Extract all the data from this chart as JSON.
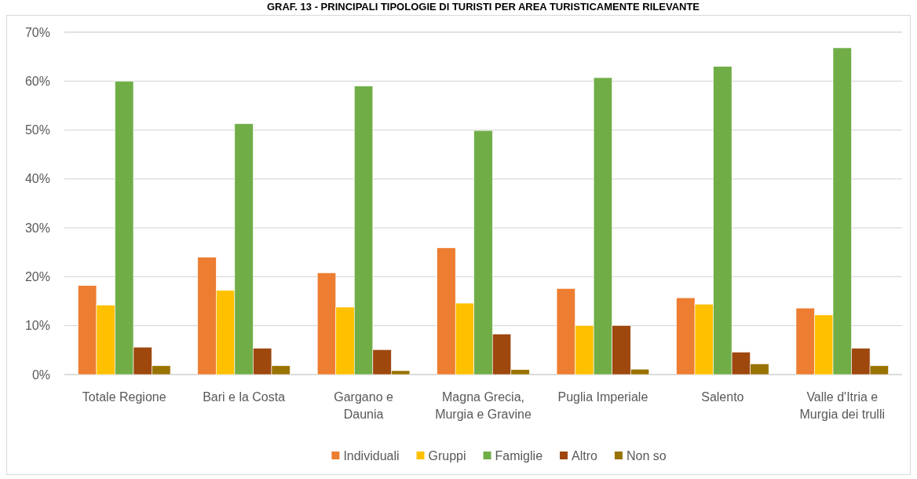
{
  "chart_data": {
    "type": "bar",
    "title": "GRAF. 13 - PRINCIPALI TIPOLOGIE DI TURISTI PER AREA TURISTICAMENTE RILEVANTE",
    "categories": [
      "Totale Regione",
      "Bari e la Costa",
      "Gargano e Daunia",
      "Magna Grecia, Murgia e Gravine",
      "Puglia Imperiale",
      "Salento",
      "Valle d'Itria e Murgia dei trulli"
    ],
    "series": [
      {
        "name": "Individuali",
        "color": "#ed7d31",
        "values": [
          18.2,
          24.0,
          20.8,
          25.9,
          17.6,
          15.7,
          13.6
        ]
      },
      {
        "name": "Gruppi",
        "color": "#ffc000",
        "values": [
          14.2,
          17.2,
          13.8,
          14.6,
          10.0,
          14.4,
          12.2
        ]
      },
      {
        "name": "Famiglie",
        "color": "#70ad47",
        "values": [
          60.0,
          51.3,
          59.0,
          49.9,
          60.7,
          63.0,
          66.8
        ]
      },
      {
        "name": "Altro",
        "color": "#9e480e",
        "values": [
          5.6,
          5.4,
          5.1,
          8.3,
          10.0,
          4.6,
          5.4
        ]
      },
      {
        "name": "Non so",
        "color": "#997300",
        "values": [
          1.8,
          1.8,
          0.8,
          1.0,
          1.1,
          2.2,
          1.8
        ]
      }
    ],
    "ylim": [
      0,
      70
    ],
    "yticks": [
      {
        "value": 0,
        "label": "0%"
      },
      {
        "value": 10,
        "label": "10%"
      },
      {
        "value": 20,
        "label": "20%"
      },
      {
        "value": 30,
        "label": "30%"
      },
      {
        "value": 40,
        "label": "40%"
      },
      {
        "value": 50,
        "label": "50%"
      },
      {
        "value": 60,
        "label": "60%"
      },
      {
        "value": 70,
        "label": "70%"
      }
    ],
    "grid": "y",
    "legend": "bottom"
  }
}
